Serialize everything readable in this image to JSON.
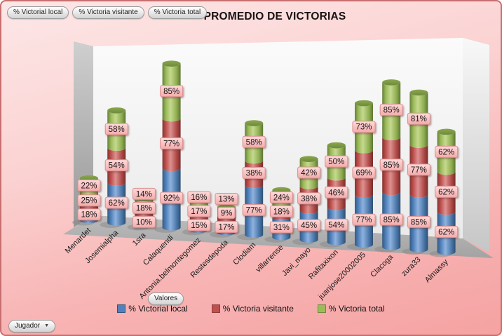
{
  "title": "PROMEDIO DE VICTORIAS",
  "filter_buttons": [
    {
      "label": "% Victorial local"
    },
    {
      "label": "% Victoria visitante"
    },
    {
      "label": "% Victoria total"
    }
  ],
  "controls": {
    "values_button_label": "Valores",
    "axis_field_button_label": "Jugador"
  },
  "chart_data": {
    "type": "bar",
    "subtype": "stacked-cylinder-3d",
    "title": "PROMEDIO DE VICTORIAS",
    "data_label_format": "percent",
    "legend_position": "bottom",
    "axis_values_visible": false,
    "grid": false,
    "ylim": [
      0,
      260
    ],
    "categories": [
      "Menardet",
      "Josemialpha",
      "1sra",
      "Calaquendi",
      "Antonia.belmontegomez",
      "Restesdepoda",
      "Clodiam",
      "villarrense",
      "Javi_mayo",
      "Rafitaxixon",
      "juanjose20002005",
      "Clacoga",
      "zura33",
      "Almassy"
    ],
    "series": [
      {
        "name": "% Victorial local",
        "color": "#4f81bd",
        "border": "#31547c",
        "values": [
          18,
          62,
          10,
          92,
          15,
          17,
          77,
          31,
          45,
          54,
          77,
          85,
          85,
          62
        ]
      },
      {
        "name": "% Victoria visitante",
        "color": "#c0504d",
        "border": "#8d3a38",
        "values": [
          25,
          54,
          18,
          77,
          17,
          9,
          38,
          18,
          38,
          46,
          69,
          85,
          77,
          62
        ]
      },
      {
        "name": "% Victoria total",
        "color": "#9bbb59",
        "border": "#71893c",
        "values": [
          22,
          58,
          14,
          85,
          16,
          13,
          58,
          24,
          42,
          50,
          73,
          85,
          81,
          62
        ]
      }
    ]
  },
  "colors": {
    "background_top": "#fde7e7",
    "background_bottom": "#f5a2a2",
    "frame_border": "#c76f6f",
    "data_label_fill": "#fcc9c9",
    "data_label_border": "#d98f8f",
    "wall": "#f3f3f3",
    "floor": "#a9a9a9"
  }
}
